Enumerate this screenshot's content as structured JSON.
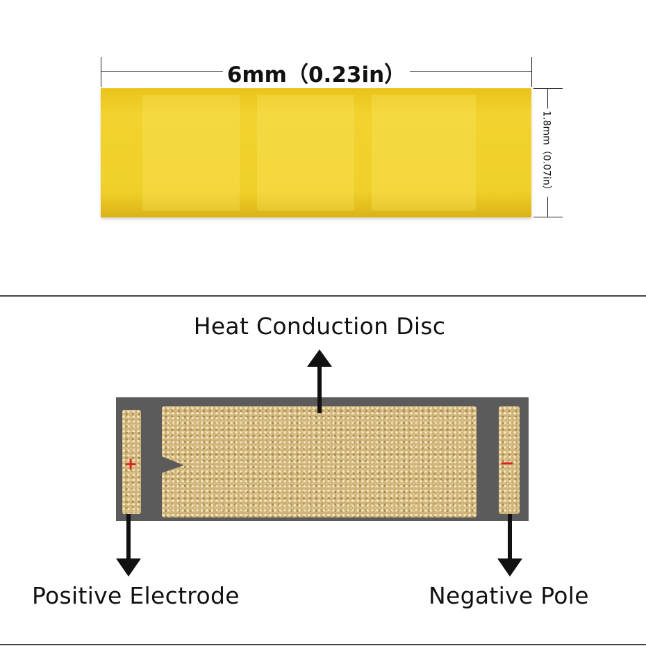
{
  "top_view": {
    "width_label": "6mm（0.23in）",
    "height_label": "1.8mm（0.07in）",
    "chip_color": "#f0cf2a"
  },
  "bottom_view": {
    "heat_conduction_label": "Heat Conduction Disc",
    "positive_label": "Positive Electrode",
    "negative_label": "Negative Pole",
    "positive_sign": "+",
    "negative_sign": "−",
    "sign_color": "#d8241a",
    "ceramic_color": "#5b5b5b",
    "pad_color": "#cdb27a"
  }
}
